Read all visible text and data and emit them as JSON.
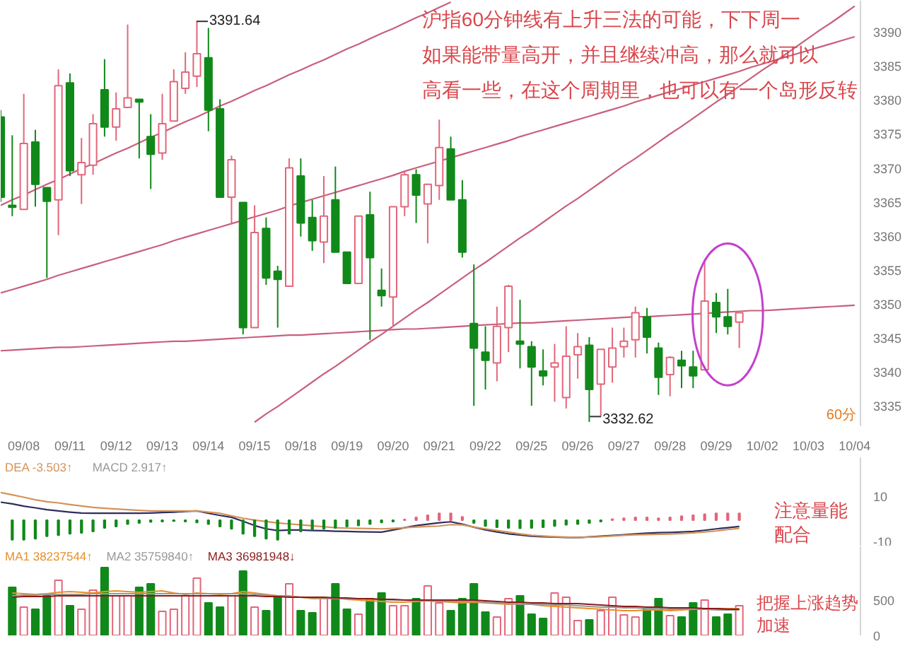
{
  "chart_data": [
    {
      "type": "candlestick",
      "categories": [
        null,
        null,
        "09/08",
        null,
        null,
        null,
        "09/11",
        null,
        null,
        null,
        "09/12",
        null,
        null,
        null,
        "09/13",
        null,
        null,
        null,
        "09/14",
        null,
        null,
        null,
        "09/15",
        null,
        null,
        null,
        "09/18",
        null,
        null,
        null,
        "09/19",
        null,
        null,
        null,
        "09/20",
        null,
        null,
        null,
        "09/21",
        null,
        null,
        null,
        "09/22",
        null,
        null,
        null,
        "09/25",
        null,
        null,
        null,
        "09/26",
        null,
        null,
        null,
        "09/27",
        null,
        null,
        null,
        "09/28",
        null,
        null,
        null,
        "09/29",
        null,
        null,
        null,
        "10/02",
        null,
        null,
        null,
        "10/03",
        null,
        null,
        null,
        "10/04"
      ],
      "ohlc": [
        [
          3377.5,
          3378.5,
          3365.0,
          3365.7
        ],
        [
          3364.5,
          3374.8,
          3362.9,
          3364.2
        ],
        [
          3363.9,
          3380.9,
          3363.9,
          3373.6
        ],
        [
          3373.8,
          3375.6,
          3364.3,
          3367.6
        ],
        [
          3367.1,
          3367.1,
          3353.8,
          3365.1
        ],
        [
          3365.3,
          3384.5,
          3360.1,
          3382.1
        ],
        [
          3382.5,
          3383.9,
          3368.8,
          3369.6
        ],
        [
          3369.0,
          3374.4,
          3364.7,
          3370.8
        ],
        [
          3370.4,
          3377.9,
          3369.0,
          3376.5
        ],
        [
          3381.5,
          3386.0,
          3374.6,
          3376.0
        ],
        [
          3376.0,
          3381.1,
          3374.0,
          3378.7
        ],
        [
          3378.9,
          3391.1,
          3378.9,
          3380.3
        ],
        [
          3380.1,
          3380.1,
          3371.4,
          3379.7
        ],
        [
          3374.6,
          3377.9,
          3366.9,
          3372.0
        ],
        [
          3372.2,
          3380.9,
          3371.2,
          3376.5
        ],
        [
          3376.9,
          3384.5,
          3376.9,
          3382.7
        ],
        [
          3381.7,
          3387.0,
          3380.9,
          3384.1
        ],
        [
          3383.5,
          3391.64,
          3381.9,
          3386.8
        ],
        [
          3386.2,
          3390.6,
          3375.4,
          3378.5
        ],
        [
          3378.7,
          3380.1,
          3365.7,
          3365.7
        ],
        [
          3365.7,
          3371.8,
          3361.7,
          3371.2
        ],
        [
          3364.9,
          3364.9,
          3345.5,
          3346.5
        ],
        [
          3346.5,
          3364.5,
          3346.5,
          3360.5
        ],
        [
          3361.1,
          3362.7,
          3352.8,
          3353.8
        ],
        [
          3354.8,
          3355.6,
          3346.5,
          3353.6
        ],
        [
          3352.6,
          3371.4,
          3352.6,
          3370.0
        ],
        [
          3368.8,
          3371.4,
          3359.9,
          3361.9
        ],
        [
          3362.7,
          3365.3,
          3357.8,
          3359.3
        ],
        [
          3359.1,
          3368.8,
          3356.0,
          3362.9
        ],
        [
          3365.3,
          3370.2,
          3357.6,
          3357.6
        ],
        [
          3357.6,
          3357.6,
          3353.0,
          3353.0
        ],
        [
          3353.0,
          3362.9,
          3353.0,
          3362.9
        ],
        [
          3363.1,
          3366.5,
          3344.7,
          3356.8
        ],
        [
          3352.0,
          3355.2,
          3349.6,
          3351.2
        ],
        [
          3351.0,
          3364.3,
          3346.7,
          3364.3
        ],
        [
          3364.3,
          3369.6,
          3362.9,
          3369.0
        ],
        [
          3369.0,
          3369.8,
          3361.9,
          3366.0
        ],
        [
          3364.7,
          3367.6,
          3358.9,
          3367.6
        ],
        [
          3367.4,
          3377.1,
          3365.3,
          3373.0
        ],
        [
          3372.8,
          3374.6,
          3365.3,
          3365.3
        ],
        [
          3365.3,
          3368.2,
          3356.8,
          3357.6
        ],
        [
          3347.1,
          3355.8,
          3335.0,
          3343.5
        ],
        [
          3342.9,
          3346.7,
          3337.4,
          3341.7
        ],
        [
          3341.3,
          3349.6,
          3338.6,
          3346.7
        ],
        [
          3346.5,
          3352.8,
          3342.9,
          3352.6
        ],
        [
          3344.5,
          3350.6,
          3340.5,
          3344.1
        ],
        [
          3343.7,
          3344.5,
          3335.0,
          3340.7
        ],
        [
          3340.1,
          3343.3,
          3338.0,
          3339.4
        ],
        [
          3340.7,
          3344.1,
          3335.6,
          3341.3
        ],
        [
          3336.2,
          3346.7,
          3334.6,
          3342.3
        ],
        [
          3342.5,
          3345.7,
          3339.0,
          3343.7
        ],
        [
          3343.9,
          3345.1,
          3332.62,
          3337.4
        ],
        [
          3338.2,
          3343.3,
          3333.5,
          3343.3
        ],
        [
          3340.7,
          3346.5,
          3338.4,
          3343.5
        ],
        [
          3343.7,
          3346.5,
          3342.1,
          3344.5
        ],
        [
          3344.7,
          3349.6,
          3342.1,
          3348.7
        ],
        [
          3348.1,
          3349.4,
          3342.7,
          3345.1
        ],
        [
          3343.5,
          3344.3,
          3336.6,
          3339.2
        ],
        [
          3339.6,
          3342.3,
          3336.4,
          3342.1
        ],
        [
          3341.7,
          3343.1,
          3337.6,
          3340.9
        ],
        [
          3340.7,
          3343.1,
          3337.6,
          3339.4
        ],
        [
          3340.3,
          3356.6,
          3340.3,
          3350.4
        ],
        [
          3350.2,
          3351.6,
          3345.7,
          3348.1
        ],
        [
          3348.1,
          3352.2,
          3345.5,
          3346.7
        ],
        [
          3347.3,
          3348.7,
          3343.5,
          3348.7
        ],
        null,
        null,
        null,
        null,
        null,
        null,
        null,
        null,
        null,
        null
      ],
      "colors": [
        "#11891a",
        "#11891a",
        "#e2667a",
        "#11891a",
        "#11891a",
        "#e2667a",
        "#11891a",
        "#e2667a",
        "#e2667a",
        "#11891a",
        "#e2667a",
        "#e2667a",
        "#11891a",
        "#11891a",
        "#e2667a",
        "#e2667a",
        "#e2667a",
        "#e2667a",
        "#11891a",
        "#11891a",
        "#e2667a",
        "#11891a",
        "#e2667a",
        "#11891a",
        "#11891a",
        "#e2667a",
        "#11891a",
        "#11891a",
        "#e2667a",
        "#11891a",
        "#11891a",
        "#e2667a",
        "#11891a",
        "#11891a",
        "#e2667a",
        "#e2667a",
        "#11891a",
        "#e2667a",
        "#e2667a",
        "#11891a",
        "#11891a",
        "#11891a",
        "#11891a",
        "#e2667a",
        "#e2667a",
        "#11891a",
        "#11891a",
        "#11891a",
        "#e2667a",
        "#e2667a",
        "#e2667a",
        "#11891a",
        "#e2667a",
        "#e2667a",
        "#e2667a",
        "#e2667a",
        "#11891a",
        "#11891a",
        "#e2667a",
        "#11891a",
        "#11891a",
        "#e2667a",
        "#11891a",
        "#11891a",
        "#e2667a",
        null,
        null,
        null,
        null,
        null,
        null,
        null,
        null,
        null,
        null
      ],
      "ylim": [
        3332.0,
        3394.6
      ],
      "yticks": [
        3335,
        3340,
        3345,
        3350,
        3355,
        3360,
        3365,
        3370,
        3375,
        3380,
        3385,
        3390
      ],
      "series": [
        {
          "type": "line",
          "color": "#c8607c",
          "values": [
            3364.5,
            3365.3,
            3366.0,
            3366.8,
            3367.6,
            3368.3,
            3369.1,
            3369.9,
            3370.6,
            3371.4,
            3372.2,
            3372.9,
            3373.7,
            3374.5,
            3375.2,
            3376.0,
            3376.8,
            3377.5,
            3378.3,
            3379.1,
            3379.8,
            3380.6,
            3381.4,
            3382.1,
            3382.9,
            3383.7,
            3384.4,
            3385.2,
            3385.9,
            3386.7,
            3387.5,
            3388.2,
            3389.0,
            3389.8,
            3390.5,
            3391.3,
            3392.1,
            3392.8,
            3393.6,
            3394.4,
            null,
            null,
            null,
            null,
            null,
            null,
            null,
            null,
            null,
            null,
            null,
            null,
            null,
            null,
            null,
            null,
            null,
            null,
            null,
            null,
            null,
            null,
            null,
            null,
            null,
            null,
            null,
            null,
            null,
            null,
            null,
            null,
            null,
            null,
            null
          ]
        },
        {
          "type": "line",
          "color": "#c8607c",
          "values": [
            3351.6,
            3352.1,
            3352.6,
            3353.1,
            3353.6,
            3354.2,
            3354.7,
            3355.2,
            3355.7,
            3356.2,
            3356.7,
            3357.2,
            3357.7,
            3358.2,
            3358.7,
            3359.3,
            3359.8,
            3360.3,
            3360.8,
            3361.3,
            3361.8,
            3362.3,
            3362.8,
            3363.3,
            3363.8,
            3364.4,
            3364.9,
            3365.4,
            3365.9,
            3366.4,
            3366.9,
            3367.4,
            3367.9,
            3368.4,
            3368.9,
            3369.5,
            3370.0,
            3370.5,
            3371.0,
            3371.5,
            3372.0,
            3372.5,
            3373.0,
            3373.5,
            3374.0,
            3374.6,
            3375.1,
            3375.6,
            3376.1,
            3376.6,
            3377.1,
            3377.6,
            3378.1,
            3378.6,
            3379.1,
            3379.7,
            3380.2,
            3380.7,
            3381.2,
            3381.7,
            3382.2,
            3382.7,
            3383.2,
            3383.7,
            3384.2,
            3384.8,
            3385.3,
            3385.8,
            3386.3,
            3386.8,
            3387.3,
            3387.8,
            3388.3,
            3388.8,
            3389.3
          ]
        },
        {
          "type": "line",
          "color": "#c8607c",
          "values": [
            3343.1,
            3343.2,
            3343.3,
            3343.4,
            3343.5,
            3343.6,
            3343.6,
            3343.7,
            3343.8,
            3343.9,
            3344.0,
            3344.1,
            3344.2,
            3344.3,
            3344.4,
            3344.5,
            3344.5,
            3344.6,
            3344.7,
            3344.8,
            3344.9,
            3345.0,
            3345.1,
            3345.2,
            3345.3,
            3345.4,
            3345.4,
            3345.5,
            3345.6,
            3345.7,
            3345.8,
            3345.9,
            3346.0,
            3346.1,
            3346.2,
            3346.3,
            3346.3,
            3346.4,
            3346.5,
            3346.6,
            3346.7,
            3346.8,
            3346.9,
            3347.0,
            3347.1,
            3347.2,
            3347.2,
            3347.3,
            3347.4,
            3347.5,
            3347.6,
            3347.7,
            3347.8,
            3347.9,
            3348.0,
            3348.1,
            3348.1,
            3348.2,
            3348.3,
            3348.4,
            3348.5,
            3348.6,
            3348.7,
            3348.8,
            3348.9,
            3349.0,
            3349.0,
            3349.1,
            3349.2,
            3349.3,
            3349.4,
            3349.5,
            3349.6,
            3349.7,
            3349.8
          ]
        },
        {
          "type": "line",
          "color": "#c8607c",
          "values": [
            null,
            null,
            null,
            null,
            null,
            null,
            null,
            null,
            null,
            null,
            null,
            null,
            null,
            null,
            null,
            null,
            null,
            null,
            null,
            null,
            null,
            null,
            3332.6,
            3333.8,
            3334.9,
            3336.1,
            3337.3,
            3338.5,
            3339.7,
            3340.8,
            3342.0,
            3343.2,
            3344.4,
            3345.5,
            3346.7,
            3347.9,
            3349.1,
            3350.2,
            3351.4,
            3352.6,
            3353.8,
            3355.0,
            3356.1,
            3357.3,
            3358.5,
            3359.7,
            3360.8,
            3362.0,
            3363.2,
            3364.4,
            3365.5,
            3366.7,
            3367.9,
            3369.1,
            3370.3,
            3371.4,
            3372.6,
            3373.8,
            3375.0,
            3376.1,
            3377.3,
            3378.5,
            3379.7,
            3380.8,
            3382.0,
            3383.2,
            3384.4,
            3385.5,
            3386.7,
            3387.9,
            3389.1,
            3390.3,
            3391.4,
            3392.6,
            3393.8
          ]
        }
      ],
      "annotations": [
        "沪指60分钟线有上升三法的可能，下下周一如果能带量高开，并且继续冲高，那么就可以高看一些，在这个周期里，也可以有一个岛形反转",
        "3391.64",
        "3332.62",
        "60分"
      ]
    },
    {
      "type": "line",
      "categories": [
        null,
        null,
        null,
        null,
        null,
        null,
        null,
        null,
        null,
        null,
        null,
        null,
        null,
        null,
        null,
        null,
        null,
        null,
        null,
        null,
        null,
        null,
        null,
        null,
        null,
        null,
        null,
        null,
        null,
        null,
        null,
        null,
        null,
        null,
        null,
        null,
        null,
        null,
        null,
        null,
        null,
        null,
        null,
        null,
        null,
        null,
        null,
        null,
        null,
        null,
        null,
        null,
        null,
        null,
        null,
        null,
        null,
        null,
        null,
        null,
        null,
        null,
        null,
        null,
        null,
        null,
        null,
        null,
        null,
        null,
        null,
        null,
        null,
        null,
        null
      ],
      "tick_labels": "y",
      "ylim": [
        -11.1,
        26.6
      ],
      "yticks": [
        -10,
        10
      ],
      "legend": "top left",
      "series": [
        {
          "type": "line",
          "color": "#2e2e5e",
          "values": [
            7.6,
            6.9,
            5.9,
            5.2,
            4.4,
            3.9,
            3.4,
            3.0,
            2.9,
            2.9,
            2.9,
            2.9,
            2.9,
            3.0,
            3.2,
            3.4,
            3.7,
            3.9,
            2.9,
            2.0,
            1.2,
            -0.5,
            -2.3,
            -3.7,
            -4.4,
            -4.2,
            -4.2,
            -4.4,
            -4.5,
            -4.7,
            -4.8,
            -4.9,
            -5.0,
            -5.1,
            -4.2,
            -3.2,
            -2.3,
            -1.7,
            -1.1,
            -0.7,
            -1.7,
            -3.0,
            -4.1,
            -5.0,
            -5.8,
            -6.3,
            -6.8,
            -7.0,
            -7.2,
            -7.3,
            -7.4,
            -7.1,
            -6.8,
            -6.5,
            -6.2,
            -5.8,
            -5.5,
            -5.3,
            -5.2,
            -5.0,
            -4.8,
            -4.3,
            -3.7,
            -3.2,
            -2.7,
            null,
            null,
            null,
            null,
            null,
            null,
            null,
            null,
            null,
            null
          ]
        },
        {
          "type": "line",
          "name": "DEA -3.503↑",
          "color": "#d4935a",
          "values": [
            11.7,
            10.7,
            9.7,
            8.6,
            7.8,
            7.3,
            6.6,
            6.0,
            5.4,
            5.0,
            4.7,
            4.4,
            4.1,
            3.9,
            3.9,
            3.9,
            3.9,
            3.9,
            3.4,
            2.9,
            1.8,
            0.8,
            0.0,
            -0.6,
            -1.2,
            -1.6,
            -2.0,
            -2.4,
            -2.8,
            -3.2,
            -3.4,
            -3.5,
            -3.6,
            -3.7,
            -3.5,
            -3.2,
            -2.9,
            -2.7,
            -2.5,
            -1.9,
            -2.0,
            -2.9,
            -3.7,
            -4.4,
            -5.1,
            -5.8,
            -6.4,
            -6.7,
            -7.0,
            -7.2,
            -7.4,
            -7.2,
            -7.0,
            -6.7,
            -6.4,
            -6.2,
            -6.1,
            -6.0,
            -5.9,
            -5.7,
            -5.4,
            -5.0,
            -4.6,
            -4.0,
            -3.5,
            null,
            null,
            null,
            null,
            null,
            null,
            null,
            null,
            null,
            null
          ]
        },
        {
          "type": "bar",
          "values": [
            null,
            -8.3,
            -8.3,
            -7.9,
            -6.8,
            -6.4,
            -5.8,
            -5.4,
            -4.8,
            -3.3,
            -2.7,
            -1.7,
            -1.2,
            -0.8,
            -0.6,
            -0.4,
            -0.6,
            -1.0,
            -1.7,
            -2.7,
            -3.7,
            -5.8,
            -6.8,
            -7.9,
            -8.3,
            -5.8,
            -4.8,
            -4.1,
            -3.7,
            -3.3,
            -2.7,
            -2.3,
            -1.7,
            -1.0,
            -0.6,
            0.3,
            1.2,
            2.1,
            2.9,
            2.9,
            1.4,
            -1.2,
            -2.5,
            -3.0,
            -3.3,
            -3.5,
            -3.3,
            -3.0,
            -2.5,
            -2.0,
            -1.7,
            -1.2,
            -0.6,
            0.4,
            0.8,
            1.2,
            1.2,
            0.8,
            1.2,
            1.7,
            2.1,
            2.5,
            2.9,
            2.9,
            2.9,
            null,
            null,
            null,
            null,
            null,
            null,
            null,
            null,
            null,
            null
          ],
          "colors": [
            "#11891a",
            "#11891a",
            "#11891a",
            "#11891a",
            "#11891a",
            "#11891a",
            "#11891a",
            "#11891a",
            "#11891a",
            "#11891a",
            "#11891a",
            "#11891a",
            "#11891a",
            "#11891a",
            "#11891a",
            "#11891a",
            "#11891a",
            "#11891a",
            "#11891a",
            "#11891a",
            "#11891a",
            "#11891a",
            "#11891a",
            "#11891a",
            "#11891a",
            "#11891a",
            "#11891a",
            "#11891a",
            "#11891a",
            "#11891a",
            "#11891a",
            "#11891a",
            "#11891a",
            "#11891a",
            "#11891a",
            "#e2667a",
            "#e2667a",
            "#e2667a",
            "#e2667a",
            "#e2667a",
            "#e2667a",
            "#11891a",
            "#11891a",
            "#11891a",
            "#11891a",
            "#11891a",
            "#11891a",
            "#11891a",
            "#11891a",
            "#11891a",
            "#11891a",
            "#11891a",
            "#11891a",
            "#e2667a",
            "#e2667a",
            "#e2667a",
            "#e2667a",
            "#e2667a",
            "#e2667a",
            "#e2667a",
            "#e2667a",
            "#e2667a",
            "#e2667a",
            "#e2667a",
            "#e2667a",
            null,
            null,
            null,
            null,
            null,
            null,
            null,
            null,
            null,
            null
          ]
        }
      ],
      "annotations": [
        "MACD 2.917↑",
        "注意量能配合"
      ]
    },
    {
      "type": "bar",
      "categories": [
        null,
        null,
        null,
        null,
        null,
        null,
        null,
        null,
        null,
        null,
        null,
        null,
        null,
        null,
        null,
        null,
        null,
        null,
        null,
        null,
        null,
        null,
        null,
        null,
        null,
        null,
        null,
        null,
        null,
        null,
        null,
        null,
        null,
        null,
        null,
        null,
        null,
        null,
        null,
        null,
        null,
        null,
        null,
        null,
        null,
        null,
        null,
        null,
        null,
        null,
        null,
        null,
        null,
        null,
        null,
        null,
        null,
        null,
        null,
        null,
        null,
        null,
        null,
        null,
        null,
        null,
        null,
        null,
        null,
        null,
        null,
        null,
        null,
        null,
        null
      ],
      "tick_labels": "y",
      "ylim": [
        0,
        1260
      ],
      "yticks": [
        0,
        500
      ],
      "legend": "top left",
      "series": [
        {
          "type": "bar",
          "values": [
            null,
            680,
            400,
            370,
            560,
            780,
            420,
            370,
            640,
            960,
            560,
            560,
            680,
            730,
            340,
            370,
            560,
            810,
            460,
            400,
            560,
            910,
            400,
            350,
            540,
            730,
            350,
            320,
            520,
            730,
            370,
            300,
            520,
            600,
            420,
            420,
            520,
            700,
            460,
            350,
            520,
            730,
            330,
            260,
            520,
            560,
            300,
            240,
            600,
            540,
            210,
            220,
            350,
            540,
            290,
            260,
            380,
            520,
            280,
            260,
            460,
            500,
            260,
            300,
            420,
            null,
            null,
            null,
            null,
            null,
            null,
            null,
            null,
            null,
            null
          ],
          "colors": [
            "#11891a",
            "#11891a",
            "#e2667a",
            "#11891a",
            "#11891a",
            "#e2667a",
            "#11891a",
            "#e2667a",
            "#e2667a",
            "#11891a",
            "#e2667a",
            "#e2667a",
            "#11891a",
            "#11891a",
            "#e2667a",
            "#e2667a",
            "#e2667a",
            "#e2667a",
            "#11891a",
            "#11891a",
            "#e2667a",
            "#11891a",
            "#e2667a",
            "#11891a",
            "#11891a",
            "#e2667a",
            "#11891a",
            "#11891a",
            "#e2667a",
            "#11891a",
            "#11891a",
            "#e2667a",
            "#11891a",
            "#11891a",
            "#e2667a",
            "#e2667a",
            "#11891a",
            "#e2667a",
            "#e2667a",
            "#11891a",
            "#11891a",
            "#11891a",
            "#11891a",
            "#e2667a",
            "#e2667a",
            "#11891a",
            "#11891a",
            "#11891a",
            "#e2667a",
            "#e2667a",
            "#e2667a",
            "#11891a",
            "#e2667a",
            "#e2667a",
            "#e2667a",
            "#e2667a",
            "#11891a",
            "#11891a",
            "#e2667a",
            "#11891a",
            "#11891a",
            "#e2667a",
            "#11891a",
            "#11891a",
            "#e2667a",
            null,
            null,
            null,
            null,
            null,
            null,
            null,
            null,
            null,
            null
          ]
        },
        {
          "type": "line",
          "name": "MA1 38237544↑",
          "color": "#e8902a",
          "values": [
            null,
            600,
            590,
            580,
            590,
            610,
            620,
            610,
            600,
            620,
            630,
            620,
            610,
            620,
            630,
            600,
            580,
            600,
            590,
            580,
            590,
            620,
            600,
            580,
            560,
            560,
            540,
            520,
            520,
            530,
            510,
            500,
            490,
            480,
            470,
            470,
            480,
            490,
            480,
            470,
            460,
            470,
            460,
            450,
            440,
            450,
            440,
            420,
            410,
            400,
            390,
            380,
            370,
            360,
            350,
            350,
            360,
            360,
            350,
            360,
            370,
            380,
            380,
            380,
            380,
            null,
            null,
            null,
            null,
            null,
            null,
            null,
            null,
            null,
            null
          ]
        },
        {
          "type": "line",
          "name": "MA2 35759840↑",
          "color": "#999999",
          "values": [
            null,
            560,
            570,
            570,
            580,
            580,
            580,
            580,
            590,
            590,
            590,
            590,
            590,
            590,
            590,
            590,
            590,
            590,
            590,
            590,
            590,
            590,
            580,
            570,
            560,
            550,
            540,
            530,
            530,
            520,
            520,
            520,
            510,
            510,
            500,
            500,
            490,
            490,
            480,
            480,
            480,
            480,
            470,
            460,
            450,
            440,
            440,
            440,
            430,
            430,
            420,
            410,
            400,
            400,
            390,
            390,
            380,
            380,
            370,
            370,
            370,
            370,
            360,
            360,
            360,
            null,
            null,
            null,
            null,
            null,
            null,
            null,
            null,
            null,
            null
          ]
        },
        {
          "type": "line",
          "name": "MA3 36981948↓",
          "color": "#8b1a1a",
          "values": [
            null,
            540,
            550,
            550,
            550,
            560,
            560,
            560,
            560,
            560,
            560,
            560,
            560,
            560,
            560,
            560,
            560,
            560,
            560,
            560,
            560,
            560,
            560,
            550,
            550,
            540,
            540,
            540,
            540,
            530,
            530,
            520,
            520,
            510,
            510,
            500,
            500,
            500,
            500,
            500,
            500,
            500,
            490,
            480,
            470,
            470,
            460,
            460,
            450,
            450,
            450,
            440,
            430,
            420,
            410,
            410,
            400,
            400,
            390,
            390,
            390,
            380,
            380,
            370,
            370,
            null,
            null,
            null,
            null,
            null,
            null,
            null,
            null,
            null,
            null
          ]
        }
      ],
      "annotations": [
        "把握上涨趋势加速"
      ]
    }
  ]
}
